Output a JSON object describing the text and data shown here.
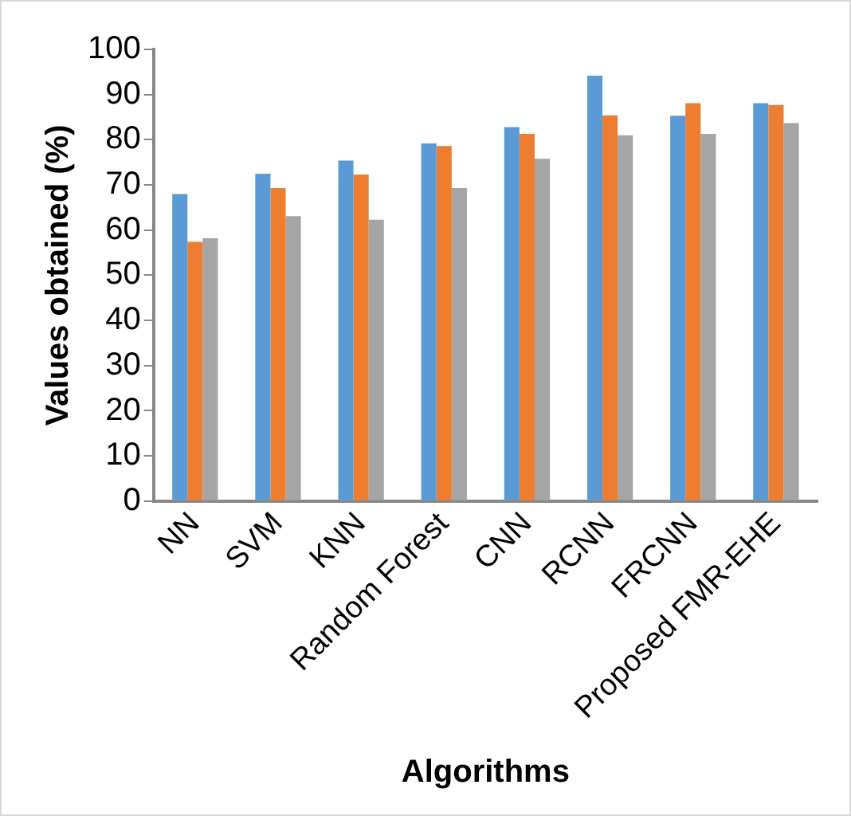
{
  "chart_data": {
    "type": "bar",
    "xlabel": "Algorithms",
    "ylabel": "Values obtained (%)",
    "categories": [
      "NN",
      "SVM",
      "KNN",
      "Random Forest",
      "CNN",
      "RCNN",
      "FRCNN",
      "Proposed FMR-EHE"
    ],
    "series": [
      {
        "color": "#5b9bd5",
        "values": [
          68,
          72.5,
          75.4,
          79.2,
          82.8,
          94.2,
          85.3,
          88.1
        ]
      },
      {
        "color": "#ed7d31",
        "values": [
          57.4,
          69.3,
          72.3,
          78.6,
          81.3,
          85.4,
          88.1,
          87.7
        ]
      },
      {
        "color": "#a5a5a5",
        "values": [
          58.2,
          63.1,
          62.3,
          69.3,
          75.8,
          81,
          81.3,
          83.7
        ]
      }
    ],
    "ylim": [
      0,
      100
    ],
    "yticks": [
      0,
      10,
      20,
      30,
      40,
      50,
      60,
      70,
      80,
      90,
      100
    ],
    "grid": false,
    "legend": false
  }
}
